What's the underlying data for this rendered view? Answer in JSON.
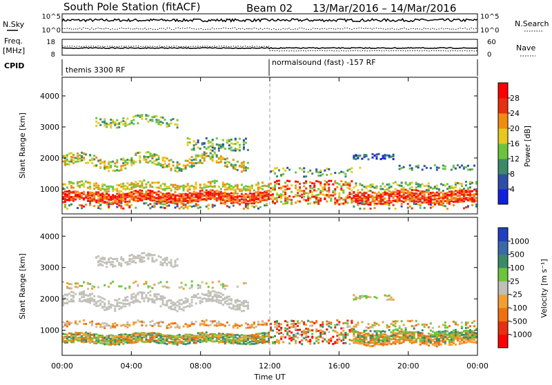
{
  "header": {
    "station": "South Pole Station (fitACF)",
    "beam": "Beam 02",
    "dates": "13/Mar/2016 – 14/Mar/2016"
  },
  "top_panels": {
    "nsky_label": "N.Sky",
    "nsky_ticks": [
      "10^5",
      "10^0"
    ],
    "nsearch_label": "N.Search",
    "nsearch_ticks": [
      "10^5",
      "10^0"
    ],
    "freq_label_1": "Freq.",
    "freq_label_2": "[MHz]",
    "freq_ticks": [
      "18",
      "8"
    ],
    "nave_label": "Nave",
    "nave_ticks": [
      "60",
      "0"
    ],
    "cpid_label": "CPID",
    "cpid_segments": [
      "themis 3300 RF",
      "normalsound (fast) -157 RF"
    ]
  },
  "chart_data": [
    {
      "type": "heatmap",
      "name": "power-panel",
      "ylabel": "Slant Range [km]",
      "yticks": [
        1000,
        2000,
        3000,
        4000
      ],
      "ylim": [
        200,
        4600
      ],
      "colorbar_label": "Power [dB]",
      "colorbar_ticks": [
        4,
        8,
        12,
        16,
        20,
        24,
        28
      ],
      "colors": [
        "#1020e0",
        "#2d4ea8",
        "#3a8a6a",
        "#6cc43c",
        "#e6c820",
        "#f08c10",
        "#e83010",
        "#ff0000"
      ]
    },
    {
      "type": "heatmap",
      "name": "velocity-panel",
      "ylabel": "Slant Range [km]",
      "yticks": [
        1000,
        2000,
        3000,
        4000
      ],
      "ylim": [
        200,
        4600
      ],
      "colorbar_label": "Velocity [m s⁻¹]",
      "colorbar_ticks": [
        "1000",
        "500",
        "100",
        "25",
        "-25",
        "-100",
        "-500",
        "-1000"
      ],
      "colors": [
        "#2040c0",
        "#3a6aa8",
        "#3a8a6a",
        "#6cc43c",
        "#c0c0b8",
        "#f0a030",
        "#f07010",
        "#e83010",
        "#ff0000"
      ]
    }
  ],
  "xaxis": {
    "label": "Time UT",
    "ticks": [
      "00:00",
      "04:00",
      "08:00",
      "12:00",
      "16:00",
      "20:00",
      "00:00"
    ]
  }
}
